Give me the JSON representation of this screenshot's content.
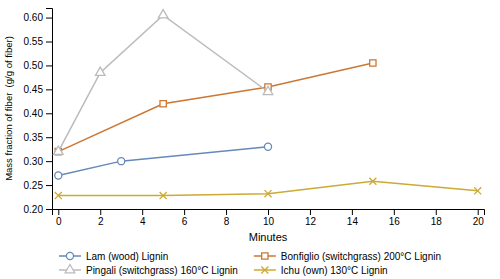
{
  "chart_data": {
    "type": "line",
    "xlabel": "Minutes",
    "ylabel": "Mass fraction of fiber  (g/g of fiber)",
    "xlim": [
      -0.3,
      20.3
    ],
    "ylim": [
      0.2,
      0.62
    ],
    "xticks": [
      0,
      2,
      4,
      6,
      8,
      10,
      12,
      14,
      16,
      18,
      20
    ],
    "yticks": [
      {
        "value": 0.2,
        "label": "0.20"
      },
      0.25,
      {
        "value": 0.3,
        "label": "0.30"
      },
      0.35,
      {
        "value": 0.4,
        "label": "0.40"
      },
      0.45,
      {
        "value": 0.5,
        "label": "0.50"
      },
      0.55,
      {
        "value": 0.6,
        "label": "0.60"
      }
    ],
    "grid": false,
    "legend": "bottom",
    "series": [
      {
        "name": "Lam (wood) Lignin",
        "color": "#6688bb",
        "marker": "circle",
        "line_style": "solid",
        "x": [
          0,
          3,
          10
        ],
        "values": [
          0.27,
          0.3,
          0.33
        ]
      },
      {
        "name": "Bonfiglio (switchgrass) 200°C Lignin",
        "color": "#cc7733",
        "marker": "square",
        "line_style": "solid",
        "x": [
          0,
          5,
          10,
          15
        ],
        "values": [
          0.32,
          0.42,
          0.455,
          0.505
        ]
      },
      {
        "name": "Pingali (switchgrass) 160°C Lignin",
        "color": "#bbbbbb",
        "marker": "triangle",
        "line_style": "solid",
        "x": [
          0,
          2,
          5,
          10
        ],
        "values": [
          0.32,
          0.485,
          0.605,
          0.445
        ]
      },
      {
        "name": "Ichu (own) 130°C Lignin",
        "color": "#ccaa33",
        "marker": "x",
        "line_style": "solid",
        "x": [
          0,
          5,
          10,
          15,
          20
        ],
        "values": [
          0.228,
          0.228,
          0.232,
          0.258,
          0.238
        ]
      }
    ]
  }
}
